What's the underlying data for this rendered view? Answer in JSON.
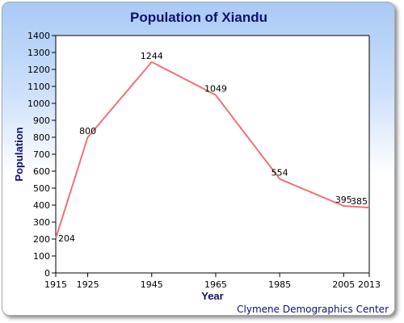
{
  "chart_data": {
    "type": "line",
    "title": "Population of Xiandu",
    "xlabel": "Year",
    "ylabel": "Population",
    "x": [
      1915,
      1925,
      1945,
      1965,
      1985,
      2005,
      2013
    ],
    "series": [
      {
        "values": [
          204,
          800,
          1244,
          1049,
          554,
          395,
          385
        ]
      }
    ],
    "data_labels": [
      "204",
      "800",
      "1244",
      "1049",
      "554",
      "395",
      "385"
    ],
    "xticks": [
      "1915",
      "1925",
      "1945",
      "1965",
      "1985",
      "2005",
      "2013"
    ],
    "yticks": [
      "0",
      "100",
      "200",
      "300",
      "400",
      "500",
      "600",
      "700",
      "800",
      "900",
      "1000",
      "1100",
      "1200",
      "1300",
      "1400"
    ],
    "ylim": [
      0,
      1400
    ],
    "line_color": "#f0707a",
    "grid": false,
    "credit": "Clymene Demographics Center"
  }
}
